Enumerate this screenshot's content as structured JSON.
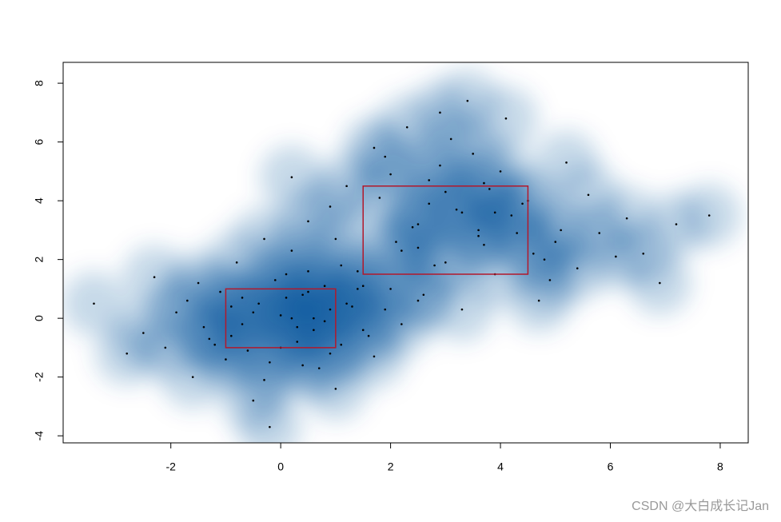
{
  "chart_data": {
    "type": "scatter",
    "x": [
      -0.5,
      0.3,
      1.2,
      -1.4,
      0.8,
      -0.2,
      0.1,
      -0.9,
      1.6,
      -2.1,
      0.5,
      -0.7,
      0.9,
      -1.1,
      0.2,
      1.9,
      -0.3,
      0.6,
      -1.7,
      1.1,
      -0.1,
      0.4,
      -2.5,
      0.7,
      -0.6,
      1.4,
      -1.3,
      0.0,
      2.2,
      -0.8,
      0.3,
      -1.9,
      1.0,
      -0.4,
      0.2,
      -2.8,
      1.3,
      -1.0,
      0.8,
      -0.2,
      1.7,
      -1.5,
      0.5,
      -0.9,
      2.5,
      -0.5,
      0.1,
      -3.4,
      0.9,
      -1.2,
      0.4,
      -0.3,
      1.5,
      -2.3,
      0.6,
      -0.7,
      1.1,
      0.0,
      -1.6,
      2.0,
      2.5,
      3.6,
      1.8,
      4.2,
      3.0,
      2.1,
      5.1,
      3.8,
      0.9,
      2.9,
      4.6,
      3.3,
      1.5,
      5.8,
      2.7,
      3.9,
      4.4,
      2.2,
      6.3,
      3.1,
      1.2,
      4.8,
      2.4,
      3.5,
      5.4,
      0.5,
      3.7,
      4.1,
      2.0,
      6.9,
      3.2,
      1.7,
      4.5,
      2.6,
      5.0,
      3.4,
      7.2,
      2.8,
      4.0,
      1.0,
      5.6,
      3.6,
      2.3,
      4.7,
      3.0,
      6.1,
      1.4,
      3.9,
      2.5,
      5.2,
      3.3,
      0.2,
      4.3,
      2.9,
      7.8,
      3.7,
      1.9,
      4.9,
      2.7,
      6.6
    ],
    "values": [
      0.2,
      -0.8,
      0.5,
      -0.3,
      1.1,
      -1.5,
      0.7,
      0.4,
      -0.6,
      -1.0,
      1.6,
      -0.2,
      -1.2,
      0.9,
      0.0,
      0.3,
      -2.1,
      -0.4,
      0.6,
      -0.9,
      1.3,
      0.8,
      -0.5,
      -1.7,
      -1.1,
      1.0,
      -0.7,
      0.1,
      -0.2,
      1.9,
      -0.3,
      0.2,
      -2.4,
      0.5,
      2.3,
      -1.2,
      0.4,
      -1.4,
      -0.1,
      -3.7,
      -1.3,
      1.2,
      0.9,
      -0.6,
      0.6,
      -2.8,
      1.5,
      0.5,
      0.3,
      -0.9,
      -1.6,
      2.7,
      -0.4,
      1.4,
      0.0,
      0.7,
      1.8,
      -1.0,
      -2.0,
      1.0,
      3.2,
      2.8,
      4.1,
      3.5,
      1.9,
      2.6,
      3.0,
      4.4,
      3.8,
      5.2,
      2.2,
      3.6,
      1.1,
      2.9,
      4.7,
      1.5,
      3.9,
      2.3,
      3.4,
      6.1,
      4.5,
      2.0,
      3.1,
      5.6,
      1.7,
      3.3,
      2.5,
      6.8,
      4.9,
      1.2,
      3.7,
      5.8,
      4.0,
      0.8,
      2.6,
      7.4,
      3.2,
      1.8,
      5.0,
      2.7,
      4.2,
      3.0,
      6.5,
      0.6,
      4.3,
      2.1,
      1.6,
      3.6,
      2.4,
      5.3,
      0.3,
      4.8,
      2.9,
      7.0,
      3.5,
      4.6,
      5.5,
      1.3,
      3.9,
      2.2
    ],
    "color": "#000000",
    "density_color": "#08519c",
    "rects": [
      {
        "x": [
          -1,
          1
        ],
        "y": [
          -1,
          1
        ]
      },
      {
        "x": [
          1.5,
          4.5
        ],
        "y": [
          1.5,
          4.5
        ]
      }
    ],
    "rect_color": "#b2182b",
    "xlim": [
      -3.96,
      8.51
    ],
    "ylim": [
      -4.24,
      8.71
    ],
    "xticks": [
      -2,
      0,
      2,
      4,
      6,
      8
    ],
    "yticks": [
      -4,
      -2,
      0,
      2,
      4,
      6,
      8
    ],
    "watermark": "CSDN @大白成长记Jan"
  }
}
